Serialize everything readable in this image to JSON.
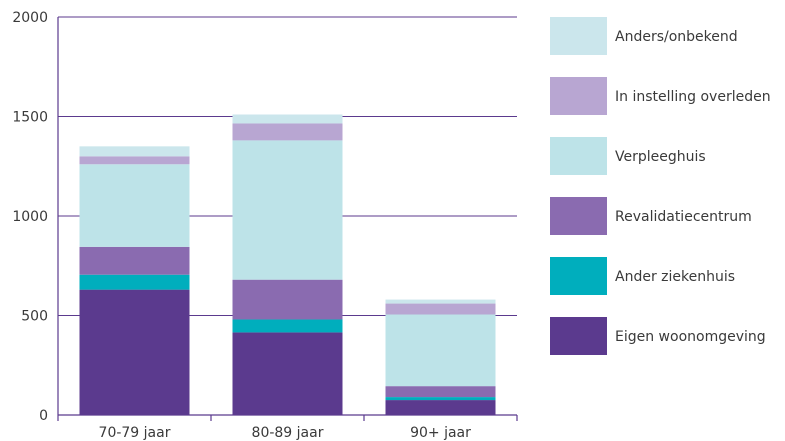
{
  "chart_data": {
    "type": "bar",
    "stacked": true,
    "categories": [
      "70-79 jaar",
      "80-89 jaar",
      "90+ jaar"
    ],
    "series": [
      {
        "name": "Eigen woonomgeving",
        "values": [
          630,
          415,
          75
        ],
        "color": "#5b3a8e"
      },
      {
        "name": "Ander ziekenhuis",
        "values": [
          75,
          65,
          15
        ],
        "color": "#00aebd"
      },
      {
        "name": "Revalidatiecentrum",
        "values": [
          140,
          200,
          55
        ],
        "color": "#8a6bb0"
      },
      {
        "name": "Verpleeghuis",
        "values": [
          415,
          700,
          360
        ],
        "color": "#bde3e8"
      },
      {
        "name": "In instelling overleden",
        "values": [
          40,
          85,
          55
        ],
        "color": "#b8a6d2"
      },
      {
        "name": "Anders/onbekend",
        "values": [
          50,
          45,
          20
        ],
        "color": "#cbe6ec"
      }
    ],
    "ylim": [
      0,
      2000
    ],
    "yticks": [
      0,
      500,
      1000,
      1500,
      2000
    ],
    "grid": true,
    "legend": "right",
    "axis_color": "#5b3a8e"
  }
}
